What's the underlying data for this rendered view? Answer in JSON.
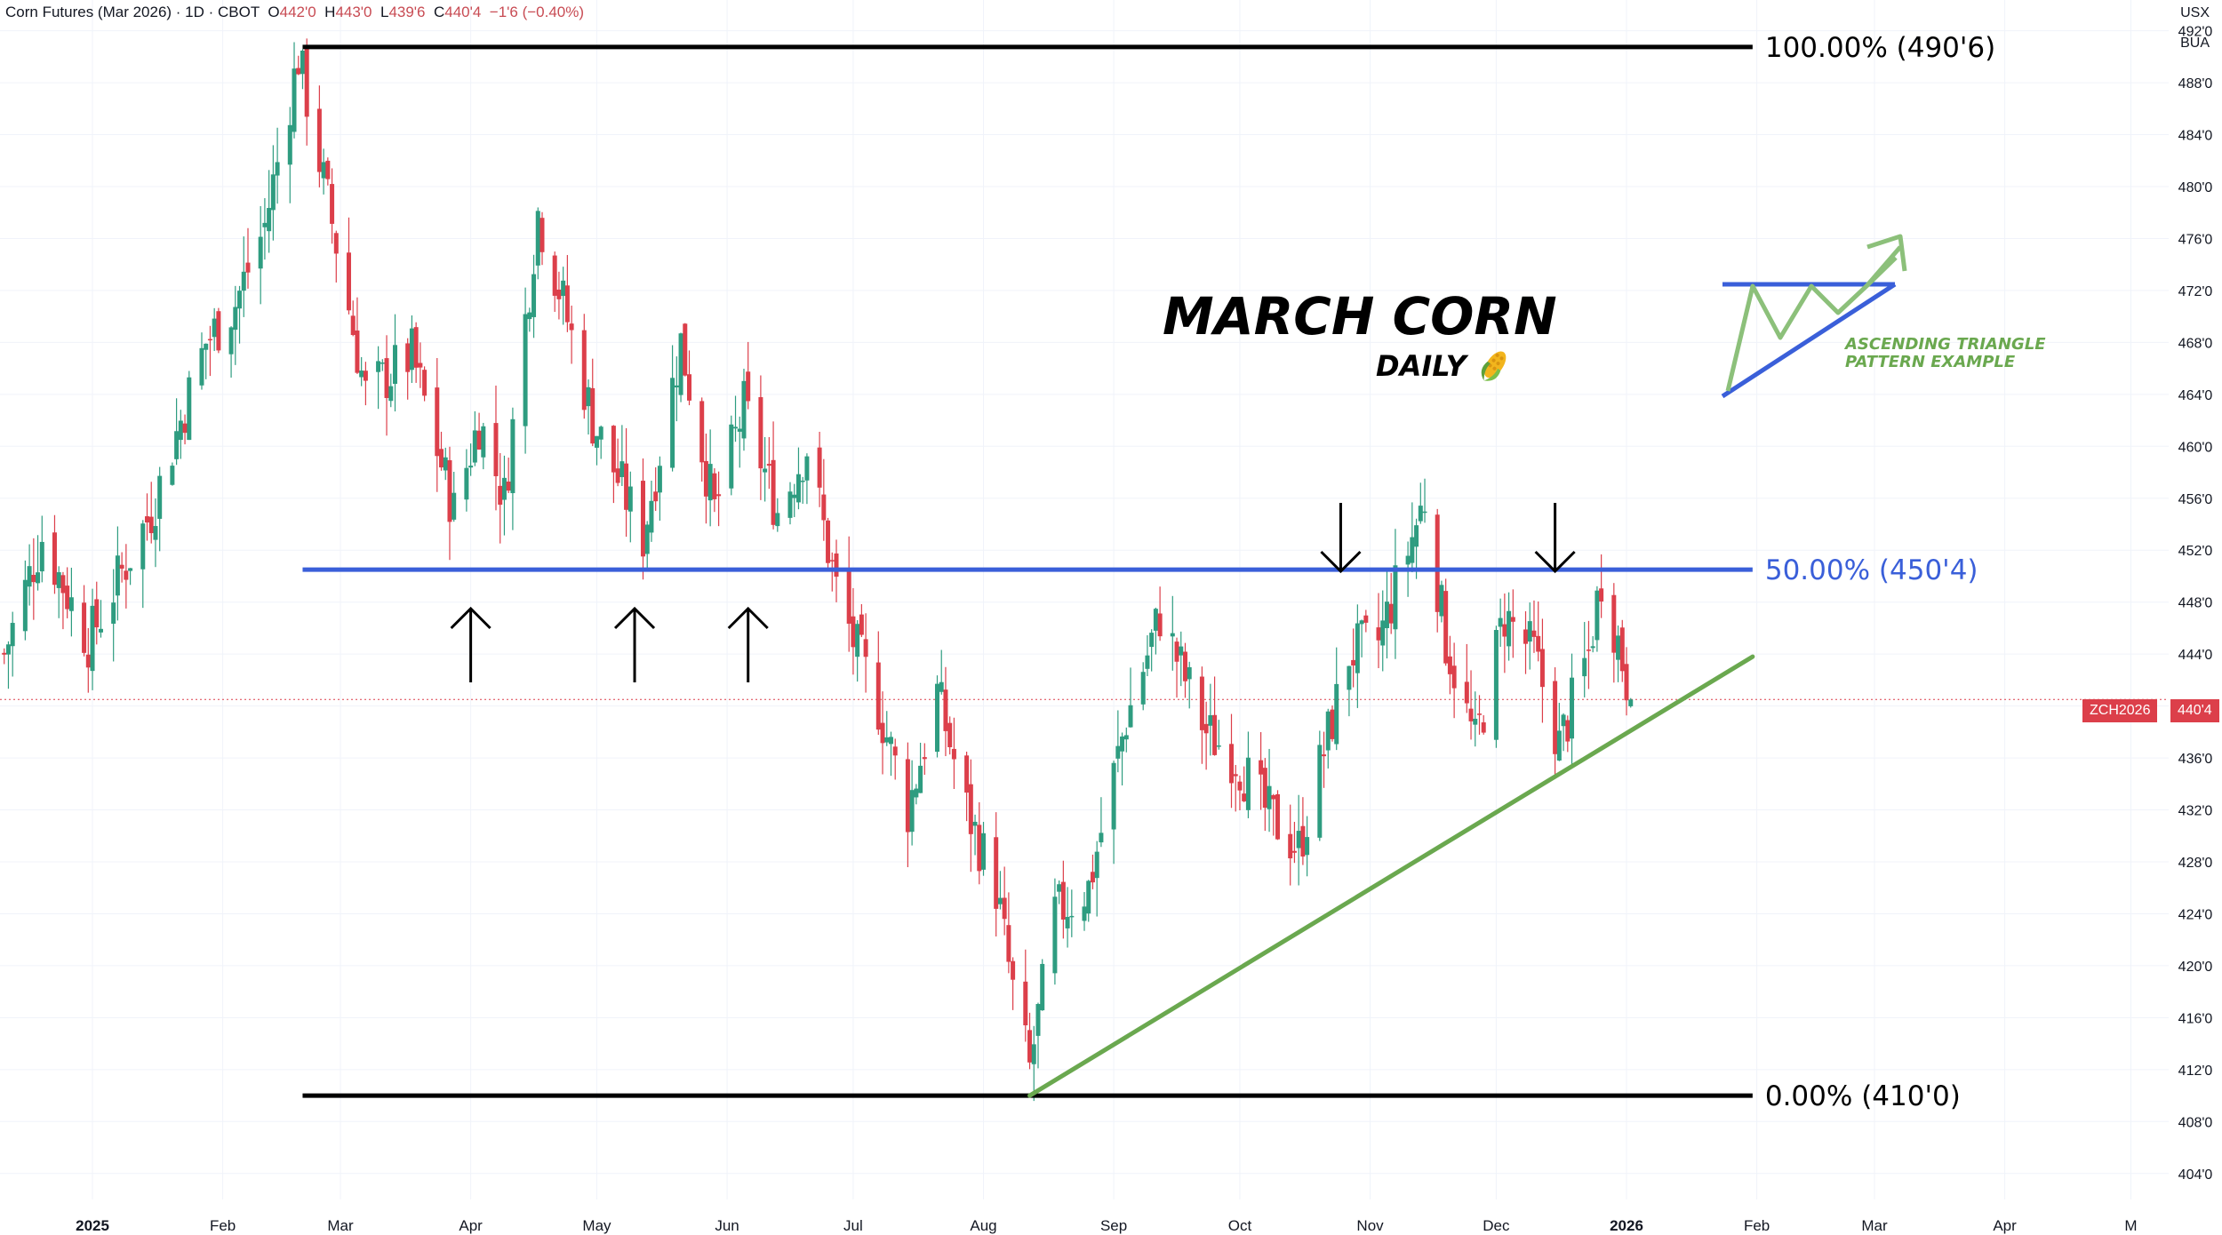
{
  "header": {
    "instrument": "Corn Futures (Mar 2026) · 1D · CBOT",
    "open_label": "O",
    "open": "442'0",
    "high_label": "H",
    "high": "443'0",
    "low_label": "L",
    "low": "439'6",
    "close_label": "C",
    "close": "440'4",
    "change": "−1'6 (−0.40%)"
  },
  "units": {
    "currency": "USX",
    "unit": "BUA"
  },
  "annotations": {
    "title": "MARCH CORN",
    "subtitle": "DAILY",
    "subtitle_icon": "corn-icon",
    "pattern_label_line1": "ASCENDING TRIANGLE",
    "pattern_label_line2": "PATTERN EXAMPLE"
  },
  "price_tag": {
    "symbol": "ZCH2026",
    "price": "440'4",
    "color": "#dc3f4a"
  },
  "colors": {
    "up": "#2e9c80",
    "down": "#dc3f4a",
    "fib_black": "#000000",
    "fib_mid": "#3a5fd9",
    "trendline": "#6aa84f"
  },
  "chart_data": {
    "type": "candlestick",
    "title": "",
    "ylabel": "",
    "ylim": [
      402,
      493
    ],
    "y_ticks": [
      "404'0",
      "408'0",
      "412'0",
      "416'0",
      "420'0",
      "424'0",
      "428'0",
      "432'0",
      "436'0",
      "440'0",
      "444'0",
      "448'0",
      "452'0",
      "456'0",
      "460'0",
      "464'0",
      "468'0",
      "472'0",
      "476'0",
      "480'0",
      "484'0",
      "488'0",
      "492'0"
    ],
    "y_tick_values": [
      404,
      408,
      412,
      416,
      420,
      424,
      428,
      432,
      436,
      440,
      444,
      448,
      452,
      456,
      460,
      464,
      468,
      472,
      476,
      480,
      484,
      488,
      492
    ],
    "x_ticks": [
      "2025",
      "Feb",
      "Mar",
      "Apr",
      "May",
      "Jun",
      "Jul",
      "Aug",
      "Sep",
      "Oct",
      "Nov",
      "Dec",
      "2026",
      "Feb",
      "Mar",
      "Apr",
      "M"
    ],
    "x_tick_dates": [
      "2025-01-01",
      "2025-02-01",
      "2025-03-01",
      "2025-04-01",
      "2025-05-01",
      "2025-06-01",
      "2025-07-01",
      "2025-08-01",
      "2025-09-01",
      "2025-10-01",
      "2025-11-01",
      "2025-12-01",
      "2026-01-01",
      "2026-02-01",
      "2026-03-01",
      "2026-04-01",
      "2026-05-01"
    ],
    "bold_ticks": [
      "2025",
      "2026"
    ],
    "x_range": [
      "2024-12-10",
      "2026-05-10"
    ],
    "grid": true,
    "ohlc_key_points": [
      [
        "2024-12-11",
        444
      ],
      [
        "2024-12-20",
        453
      ],
      [
        "2024-12-31",
        445
      ],
      [
        "2025-01-15",
        455
      ],
      [
        "2025-01-28",
        468
      ],
      [
        "2025-02-04",
        471
      ],
      [
        "2025-02-11",
        477
      ],
      [
        "2025-02-19",
        490
      ],
      [
        "2025-03-01",
        474
      ],
      [
        "2025-03-07",
        464
      ],
      [
        "2025-03-18",
        467
      ],
      [
        "2025-03-28",
        455
      ],
      [
        "2025-04-03",
        462
      ],
      [
        "2025-04-09",
        456
      ],
      [
        "2025-04-17",
        478
      ],
      [
        "2025-04-23",
        471
      ],
      [
        "2025-04-30",
        462
      ],
      [
        "2025-05-12",
        453
      ],
      [
        "2025-05-21",
        468
      ],
      [
        "2025-05-29",
        455
      ],
      [
        "2025-06-05",
        463
      ],
      [
        "2025-06-13",
        455
      ],
      [
        "2025-06-20",
        460
      ],
      [
        "2025-06-27",
        449
      ],
      [
        "2025-07-01",
        445
      ],
      [
        "2025-07-07",
        440
      ],
      [
        "2025-07-14",
        432
      ],
      [
        "2025-07-21",
        441
      ],
      [
        "2025-07-28",
        432
      ],
      [
        "2025-08-04",
        426
      ],
      [
        "2025-08-08",
        418
      ],
      [
        "2025-08-12",
        412
      ],
      [
        "2025-08-18",
        424
      ],
      [
        "2025-08-26",
        426
      ],
      [
        "2025-09-04",
        439
      ],
      [
        "2025-09-12",
        447
      ],
      [
        "2025-09-23",
        438
      ],
      [
        "2025-09-30",
        436
      ],
      [
        "2025-10-07",
        432
      ],
      [
        "2025-10-15",
        429
      ],
      [
        "2025-10-27",
        444
      ],
      [
        "2025-11-03",
        445
      ],
      [
        "2025-11-14",
        456
      ],
      [
        "2025-11-19",
        445
      ],
      [
        "2025-11-26",
        437
      ],
      [
        "2025-12-03",
        447
      ],
      [
        "2025-12-10",
        444
      ],
      [
        "2025-12-16",
        437
      ],
      [
        "2025-12-23",
        444
      ],
      [
        "2025-12-26",
        450
      ],
      [
        "2025-12-30",
        445
      ],
      [
        "2026-01-02",
        440.5
      ]
    ],
    "levels": [
      {
        "label": "100.00% (490'6)",
        "value": 490.75,
        "color": "#000000"
      },
      {
        "label": "50.00% (450'4)",
        "value": 450.5,
        "color": "#3a5fd9"
      },
      {
        "label": "0.00% (410'0)",
        "value": 410.0,
        "color": "#000000"
      }
    ],
    "level_start": "2025-02-20",
    "level_end": "2026-01-31",
    "trendline": {
      "from": [
        "2025-08-12",
        410.0
      ],
      "to": [
        "2026-01-31",
        443.8
      ],
      "color": "#6aa84f"
    },
    "up_arrows": [
      "2025-04-01",
      "2025-05-10",
      "2025-06-06"
    ],
    "down_arrows": [
      "2025-10-25",
      "2025-12-15"
    ],
    "current_price": 440.5
  }
}
